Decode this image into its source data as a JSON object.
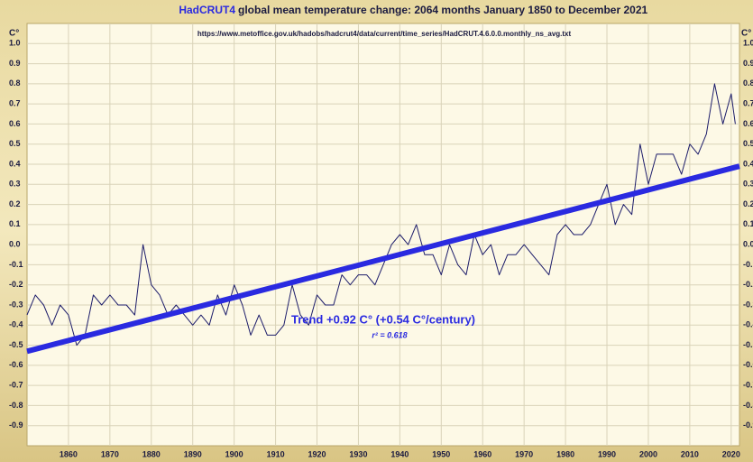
{
  "chart_data": {
    "type": "line",
    "title_source": "HadCRUT4",
    "title": "global mean temperature change: 2064 months January 1850 to December 2021",
    "source_url": "https://www.metoffice.gov.uk/hadobs/hadcrut4/data/current/time_series/HadCRUT.4.6.0.0.monthly_ns_avg.txt",
    "y_label": "C°",
    "annotations": [
      "Trend +0.92 C° (+0.54 C°/century)",
      "r² = 0.618"
    ],
    "xlim": [
      1850,
      2022
    ],
    "xticks": [
      1860,
      1870,
      1880,
      1890,
      1900,
      1910,
      1920,
      1930,
      1940,
      1950,
      1960,
      1970,
      1980,
      1990,
      2000,
      2010,
      2020
    ],
    "ylim": [
      -1.0,
      1.1
    ],
    "yticks": [
      {
        "value": 1,
        "label": "1.0"
      },
      0.9,
      0.8,
      0.7,
      0.6,
      0.5,
      0.4,
      0.3,
      0.2,
      0.1,
      {
        "value": 0,
        "label": "0.0"
      },
      -0.1,
      -0.2,
      -0.3,
      -0.4,
      -0.5,
      -0.6,
      -0.7,
      -0.8,
      -0.9
    ],
    "grid": true,
    "series": [
      {
        "color": "#1c1c6a",
        "x": [
          1850,
          1852,
          1854,
          1856,
          1858,
          1860,
          1862,
          1864,
          1866,
          1868,
          1870,
          1872,
          1874,
          1876,
          1878,
          1880,
          1882,
          1884,
          1886,
          1888,
          1890,
          1892,
          1894,
          1896,
          1898,
          1900,
          1902,
          1904,
          1906,
          1908,
          1910,
          1912,
          1914,
          1916,
          1918,
          1920,
          1922,
          1924,
          1926,
          1928,
          1930,
          1932,
          1934,
          1936,
          1938,
          1940,
          1942,
          1944,
          1946,
          1948,
          1950,
          1952,
          1954,
          1956,
          1958,
          1960,
          1962,
          1964,
          1966,
          1968,
          1970,
          1972,
          1974,
          1976,
          1978,
          1980,
          1982,
          1984,
          1986,
          1988,
          1990,
          1992,
          1994,
          1996,
          1998,
          2000,
          2002,
          2004,
          2006,
          2008,
          2010,
          2012,
          2014,
          2016,
          2018,
          2020,
          2021
        ],
        "values": [
          -0.35,
          -0.25,
          -0.3,
          -0.4,
          -0.3,
          -0.35,
          -0.5,
          -0.45,
          -0.25,
          -0.3,
          -0.25,
          -0.3,
          -0.3,
          -0.35,
          0.0,
          -0.2,
          -0.25,
          -0.35,
          -0.3,
          -0.35,
          -0.4,
          -0.35,
          -0.4,
          -0.25,
          -0.35,
          -0.2,
          -0.3,
          -0.45,
          -0.35,
          -0.45,
          -0.45,
          -0.4,
          -0.2,
          -0.35,
          -0.4,
          -0.25,
          -0.3,
          -0.3,
          -0.15,
          -0.2,
          -0.15,
          -0.15,
          -0.2,
          -0.1,
          0.0,
          0.05,
          0.0,
          0.1,
          -0.05,
          -0.05,
          -0.15,
          0.0,
          -0.1,
          -0.15,
          0.05,
          -0.05,
          0.0,
          -0.15,
          -0.05,
          -0.05,
          0.0,
          -0.05,
          -0.1,
          -0.15,
          0.05,
          0.1,
          0.05,
          0.05,
          0.1,
          0.2,
          0.3,
          0.1,
          0.2,
          0.15,
          0.5,
          0.3,
          0.45,
          0.45,
          0.45,
          0.35,
          0.5,
          0.45,
          0.55,
          0.8,
          0.6,
          0.75,
          0.6
        ]
      },
      {
        "color": "#2a2ae0",
        "x": [
          1850,
          2022
        ],
        "values": [
          -0.53,
          0.39
        ]
      }
    ]
  }
}
